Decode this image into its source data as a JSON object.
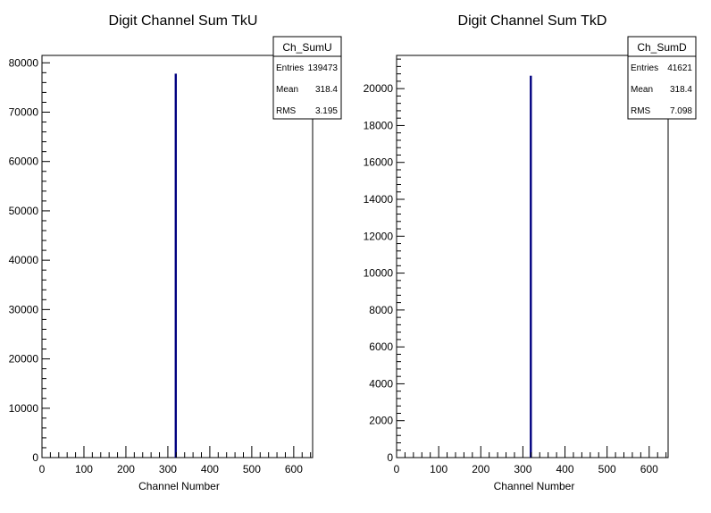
{
  "chart_data": [
    {
      "type": "bar",
      "title": "Digit Channel Sum TkU",
      "xlabel": "Channel Number",
      "ylabel": "",
      "xlim": [
        0,
        645
      ],
      "ylim": [
        0,
        81500
      ],
      "xticks": [
        0,
        100,
        200,
        300,
        400,
        500,
        600
      ],
      "yticks": [
        0,
        10000,
        20000,
        30000,
        40000,
        50000,
        60000,
        70000,
        80000
      ],
      "bars": [
        {
          "x": 318.4,
          "value": 77800
        }
      ],
      "bar_color": "#000080",
      "stats": {
        "name": "Ch_SumU",
        "rows": [
          {
            "label": "Entries",
            "value": "139473"
          },
          {
            "label": "Mean",
            "value": "318.4"
          },
          {
            "label": "RMS",
            "value": "3.195"
          }
        ]
      },
      "grid": false,
      "legend": "top-right"
    },
    {
      "type": "bar",
      "title": "Digit Channel Sum TkD",
      "xlabel": "Channel Number",
      "ylabel": "",
      "xlim": [
        0,
        645
      ],
      "ylim": [
        0,
        21800
      ],
      "xticks": [
        0,
        100,
        200,
        300,
        400,
        500,
        600
      ],
      "yticks": [
        0,
        2000,
        4000,
        6000,
        8000,
        10000,
        12000,
        14000,
        16000,
        18000,
        20000
      ],
      "bars": [
        {
          "x": 318.4,
          "value": 20700
        }
      ],
      "bar_color": "#000080",
      "stats": {
        "name": "Ch_SumD",
        "rows": [
          {
            "label": "Entries",
            "value": "41621"
          },
          {
            "label": "Mean",
            "value": "318.4"
          },
          {
            "label": "RMS",
            "value": "7.098"
          }
        ]
      },
      "grid": false,
      "legend": "top-right"
    }
  ]
}
